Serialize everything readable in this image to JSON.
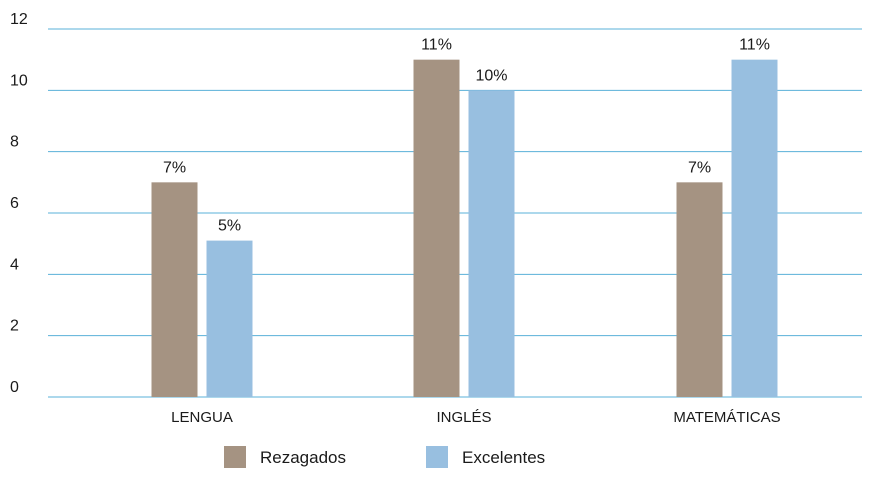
{
  "chart_data": {
    "type": "bar",
    "categories": [
      "LENGUA",
      "INGLÉS",
      "MATEMÁTICAS"
    ],
    "series": [
      {
        "name": "Rezagados",
        "values": [
          7,
          11,
          7
        ],
        "labels": [
          "7%",
          "11%",
          "7%"
        ],
        "color": "#a59382"
      },
      {
        "name": "Excelentes",
        "values": [
          5.1,
          10,
          11
        ],
        "labels": [
          "5%",
          "10%",
          "11%"
        ],
        "color": "#98bfe0"
      }
    ],
    "ylim": [
      0,
      12
    ],
    "yticks": [
      0,
      2,
      4,
      6,
      8,
      10,
      12
    ],
    "grid": true,
    "grid_color": "#5ab0d8",
    "legend_position": "bottom-center"
  }
}
